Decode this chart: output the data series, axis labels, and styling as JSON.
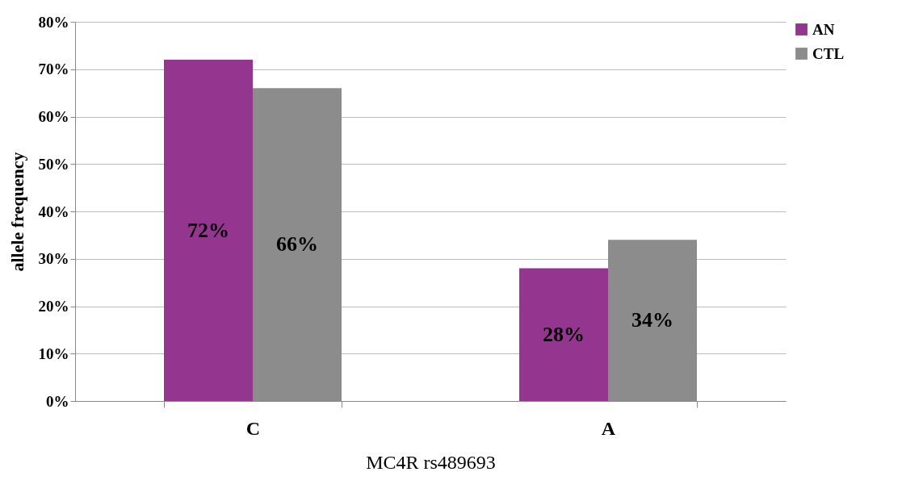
{
  "chart_data": {
    "type": "bar",
    "xlabel": "MC4R rs489693",
    "ylabel": "allele frequency",
    "categories": [
      "C",
      "A"
    ],
    "series": [
      {
        "name": "AN",
        "color": "#943590",
        "values": [
          72,
          28
        ],
        "value_labels": [
          "72%",
          "28%"
        ]
      },
      {
        "name": "CTL",
        "color": "#8c8c8c",
        "values": [
          66,
          34
        ],
        "value_labels": [
          "66%",
          "34%"
        ]
      }
    ],
    "ylim": [
      0,
      80
    ],
    "yticks": [
      {
        "value": 0,
        "label": "0%"
      },
      {
        "value": 10,
        "label": "10%"
      },
      {
        "value": 20,
        "label": "20%"
      },
      {
        "value": 30,
        "label": "30%"
      },
      {
        "value": 40,
        "label": "40%"
      },
      {
        "value": 50,
        "label": "50%"
      },
      {
        "value": 60,
        "label": "60%"
      },
      {
        "value": 70,
        "label": "70%"
      },
      {
        "value": 80,
        "label": "80%"
      }
    ],
    "grid": "y",
    "legend": "right"
  }
}
